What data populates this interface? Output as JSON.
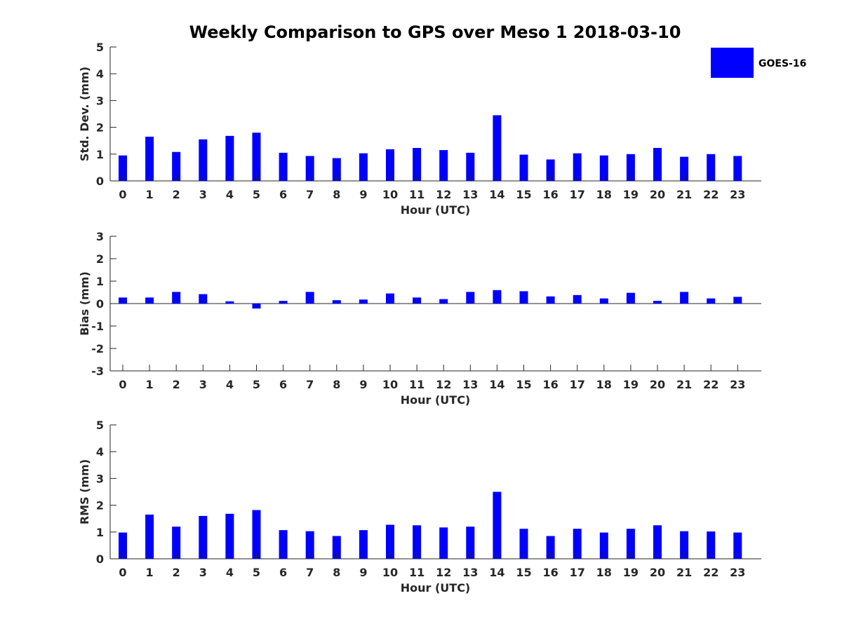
{
  "title": "Weekly Comparison to GPS over Meso 1 2018-03-10",
  "colors": {
    "bar": "#0000ff",
    "axis": "#262626"
  },
  "legend": {
    "label": "GOES-16",
    "placement": "top-right"
  },
  "chart_data": [
    {
      "type": "bar",
      "series_name": "GOES-16",
      "xlabel": "Hour (UTC)",
      "ylabel": "Std. Dev. (mm)",
      "ylim": [
        0,
        5
      ],
      "yticks": [
        0,
        1,
        2,
        3,
        4,
        5
      ],
      "categories": [
        "0",
        "1",
        "2",
        "3",
        "4",
        "5",
        "6",
        "7",
        "8",
        "9",
        "10",
        "11",
        "12",
        "13",
        "14",
        "15",
        "16",
        "17",
        "18",
        "19",
        "20",
        "21",
        "22",
        "23"
      ],
      "values": [
        0.95,
        1.65,
        1.08,
        1.55,
        1.68,
        1.8,
        1.05,
        0.93,
        0.85,
        1.03,
        1.18,
        1.23,
        1.15,
        1.05,
        2.45,
        0.98,
        0.8,
        1.03,
        0.95,
        1.0,
        1.23,
        0.9,
        1.0,
        0.93
      ]
    },
    {
      "type": "bar",
      "series_name": "GOES-16",
      "xlabel": "Hour (UTC)",
      "ylabel": "Bias (mm)",
      "ylim": [
        -3,
        3
      ],
      "yticks": [
        -3,
        -2,
        -1,
        0,
        1,
        2,
        3
      ],
      "zero_line": true,
      "categories": [
        "0",
        "1",
        "2",
        "3",
        "4",
        "5",
        "6",
        "7",
        "8",
        "9",
        "10",
        "11",
        "12",
        "13",
        "14",
        "15",
        "16",
        "17",
        "18",
        "19",
        "20",
        "21",
        "22",
        "23"
      ],
      "values": [
        0.27,
        0.27,
        0.52,
        0.42,
        0.1,
        -0.22,
        0.12,
        0.52,
        0.15,
        0.18,
        0.45,
        0.27,
        0.2,
        0.52,
        0.6,
        0.55,
        0.32,
        0.38,
        0.23,
        0.48,
        0.12,
        0.52,
        0.23,
        0.3
      ]
    },
    {
      "type": "bar",
      "series_name": "GOES-16",
      "xlabel": "Hour (UTC)",
      "ylabel": "RMS (mm)",
      "ylim": [
        0,
        5
      ],
      "yticks": [
        0,
        1,
        2,
        3,
        4,
        5
      ],
      "categories": [
        "0",
        "1",
        "2",
        "3",
        "4",
        "5",
        "6",
        "7",
        "8",
        "9",
        "10",
        "11",
        "12",
        "13",
        "14",
        "15",
        "16",
        "17",
        "18",
        "19",
        "20",
        "21",
        "22",
        "23"
      ],
      "values": [
        0.98,
        1.65,
        1.2,
        1.6,
        1.68,
        1.82,
        1.07,
        1.03,
        0.85,
        1.07,
        1.27,
        1.25,
        1.17,
        1.2,
        2.5,
        1.12,
        0.85,
        1.12,
        0.98,
        1.12,
        1.25,
        1.03,
        1.02,
        0.98
      ]
    }
  ]
}
